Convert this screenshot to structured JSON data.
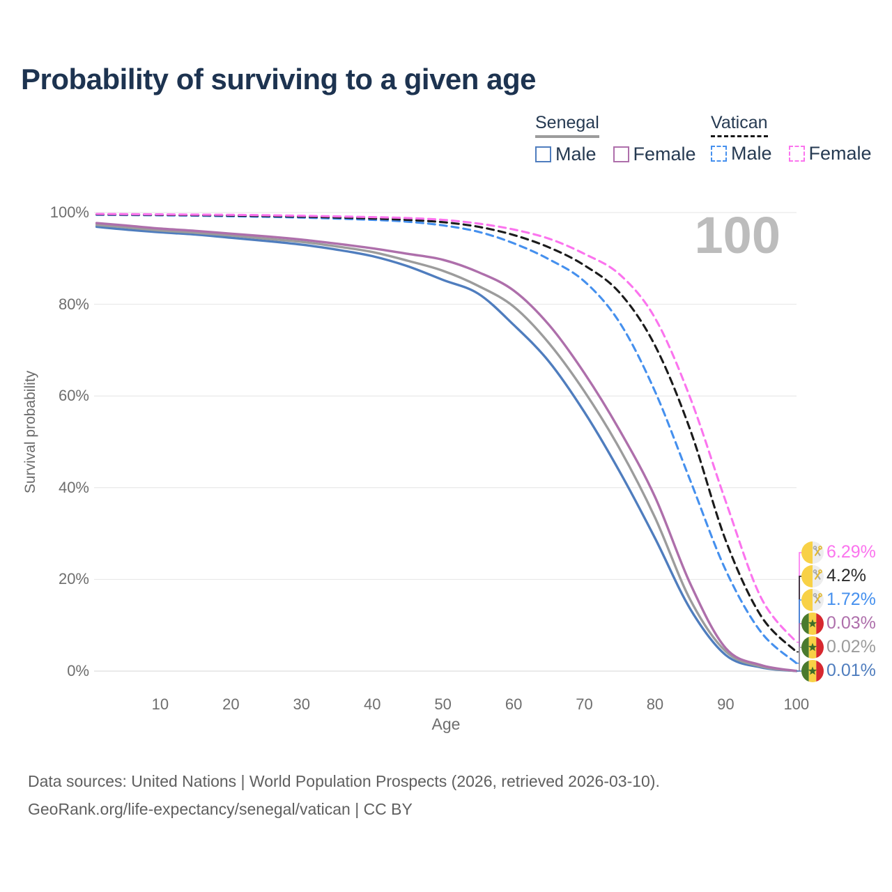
{
  "title": "Probability of surviving to a given age",
  "watermark": "100",
  "legend": {
    "senegal": {
      "title": "Senegal",
      "male": "Male",
      "female": "Female"
    },
    "vatican": {
      "title": "Vatican",
      "male": "Male",
      "female": "Female"
    }
  },
  "axes": {
    "y_label": "Survival probability",
    "x_label": "Age"
  },
  "footer": {
    "line1": "Data sources: United Nations | World Population Prospects (2026, retrieved 2026-03-10).",
    "line2": "GeoRank.org/life-expectancy/senegal/vatican | CC BY"
  },
  "chart_data": {
    "type": "line",
    "title": "Probability of surviving to a given age",
    "xlabel": "Age",
    "ylabel": "Survival probability",
    "xlim": [
      0,
      100
    ],
    "ylim": [
      0,
      100
    ],
    "grid": true,
    "legend_position": "top-right",
    "x_tick_values": [
      10,
      20,
      30,
      40,
      50,
      60,
      70,
      80,
      90,
      100
    ],
    "x_ticks": [
      "10",
      "20",
      "30",
      "40",
      "50",
      "60",
      "70",
      "80",
      "90",
      "100"
    ],
    "y_tick_values": [
      0,
      20,
      40,
      60,
      80,
      100
    ],
    "y_ticks": [
      "0%",
      "20%",
      "40%",
      "60%",
      "80%",
      "100%"
    ],
    "series": [
      {
        "name": "senegal-male",
        "country": "Senegal",
        "sex": "Male",
        "color": "#4f7dbe",
        "dashed": false,
        "flag": "senegal",
        "end_label": "0.01%",
        "label_color": "#4f7dbe",
        "points": [
          [
            1,
            96.9
          ],
          [
            5,
            96.3
          ],
          [
            10,
            95.7
          ],
          [
            15,
            95.2
          ],
          [
            20,
            94.5
          ],
          [
            25,
            93.8
          ],
          [
            30,
            93.0
          ],
          [
            35,
            91.9
          ],
          [
            40,
            90.5
          ],
          [
            45,
            88.3
          ],
          [
            50,
            85.3
          ],
          [
            55,
            82.3
          ],
          [
            60,
            75.5
          ],
          [
            65,
            67.5
          ],
          [
            70,
            56.5
          ],
          [
            75,
            43.5
          ],
          [
            80,
            29.0
          ],
          [
            85,
            13.5
          ],
          [
            90,
            3.5
          ],
          [
            95,
            0.8
          ],
          [
            100,
            0.01
          ]
        ]
      },
      {
        "name": "senegal-all",
        "country": "Senegal",
        "sex": "Both sexes",
        "color": "#9c9c9c",
        "dashed": false,
        "flag": "senegal",
        "end_label": "0.02%",
        "label_color": "#9c9c9c",
        "points": [
          [
            1,
            97.3
          ],
          [
            5,
            96.8
          ],
          [
            10,
            96.1
          ],
          [
            15,
            95.6
          ],
          [
            20,
            95.0
          ],
          [
            25,
            94.3
          ],
          [
            30,
            93.6
          ],
          [
            35,
            92.6
          ],
          [
            40,
            91.4
          ],
          [
            45,
            89.5
          ],
          [
            50,
            87.3
          ],
          [
            55,
            84.0
          ],
          [
            60,
            79.5
          ],
          [
            65,
            71.5
          ],
          [
            70,
            61.0
          ],
          [
            75,
            48.5
          ],
          [
            80,
            33.5
          ],
          [
            85,
            15.5
          ],
          [
            90,
            4.3
          ],
          [
            95,
            1.0
          ],
          [
            100,
            0.02
          ]
        ]
      },
      {
        "name": "senegal-female",
        "country": "Senegal",
        "sex": "Female",
        "color": "#ae6fab",
        "dashed": false,
        "flag": "senegal",
        "end_label": "0.03%",
        "label_color": "#ae6fab",
        "points": [
          [
            1,
            97.7
          ],
          [
            5,
            97.2
          ],
          [
            10,
            96.5
          ],
          [
            15,
            96.0
          ],
          [
            20,
            95.4
          ],
          [
            25,
            94.8
          ],
          [
            30,
            94.1
          ],
          [
            35,
            93.2
          ],
          [
            40,
            92.2
          ],
          [
            45,
            91.0
          ],
          [
            50,
            89.7
          ],
          [
            55,
            87.0
          ],
          [
            60,
            83.0
          ],
          [
            65,
            75.5
          ],
          [
            70,
            65.0
          ],
          [
            75,
            52.5
          ],
          [
            80,
            38.0
          ],
          [
            85,
            19.0
          ],
          [
            90,
            5.0
          ],
          [
            95,
            1.3
          ],
          [
            100,
            0.03
          ]
        ]
      },
      {
        "name": "vatican-male",
        "country": "Vatican",
        "sex": "Male",
        "color": "#4590ee",
        "dashed": true,
        "flag": "vatican",
        "end_label": "1.72%",
        "label_color": "#4590ee",
        "points": [
          [
            1,
            99.5
          ],
          [
            10,
            99.4
          ],
          [
            20,
            99.2
          ],
          [
            30,
            98.9
          ],
          [
            40,
            98.4
          ],
          [
            45,
            98.0
          ],
          [
            50,
            97.2
          ],
          [
            55,
            95.8
          ],
          [
            60,
            93.3
          ],
          [
            65,
            89.8
          ],
          [
            70,
            85.0
          ],
          [
            75,
            76.0
          ],
          [
            80,
            61.0
          ],
          [
            85,
            41.5
          ],
          [
            90,
            22.0
          ],
          [
            95,
            8.5
          ],
          [
            100,
            1.72
          ]
        ]
      },
      {
        "name": "vatican-all",
        "country": "Vatican",
        "sex": "Both sexes",
        "color": "#1b1b1b",
        "dashed": true,
        "flag": "vatican",
        "end_label": "4.2%",
        "label_color": "#2b2b2b",
        "points": [
          [
            1,
            99.6
          ],
          [
            10,
            99.5
          ],
          [
            20,
            99.35
          ],
          [
            30,
            99.1
          ],
          [
            40,
            98.7
          ],
          [
            45,
            98.4
          ],
          [
            50,
            97.9
          ],
          [
            55,
            96.9
          ],
          [
            60,
            95.1
          ],
          [
            65,
            92.4
          ],
          [
            70,
            88.5
          ],
          [
            75,
            82.5
          ],
          [
            80,
            71.0
          ],
          [
            85,
            52.5
          ],
          [
            90,
            28.5
          ],
          [
            95,
            12.0
          ],
          [
            100,
            4.2
          ]
        ]
      },
      {
        "name": "vatican-female",
        "country": "Vatican",
        "sex": "Female",
        "color": "#fb74ee",
        "dashed": true,
        "flag": "vatican",
        "end_label": "6.29%",
        "label_color": "#fb74ee",
        "points": [
          [
            1,
            99.7
          ],
          [
            10,
            99.6
          ],
          [
            20,
            99.5
          ],
          [
            30,
            99.3
          ],
          [
            40,
            99.0
          ],
          [
            45,
            98.8
          ],
          [
            50,
            98.4
          ],
          [
            55,
            97.6
          ],
          [
            60,
            96.3
          ],
          [
            65,
            94.3
          ],
          [
            70,
            91.0
          ],
          [
            75,
            86.5
          ],
          [
            80,
            77.0
          ],
          [
            85,
            59.5
          ],
          [
            90,
            37.0
          ],
          [
            95,
            16.0
          ],
          [
            100,
            6.29
          ]
        ]
      }
    ],
    "flag_colors": {
      "senegal": {
        "green": "#4a7a2e",
        "yellow": "#f8d146",
        "red": "#d7282f",
        "star": "#3f6d28"
      },
      "vatican": {
        "yellow": "#f8d146",
        "white": "#ededed",
        "key_gray": "#a9a9a9",
        "key_gold": "#e3b92d"
      }
    }
  }
}
